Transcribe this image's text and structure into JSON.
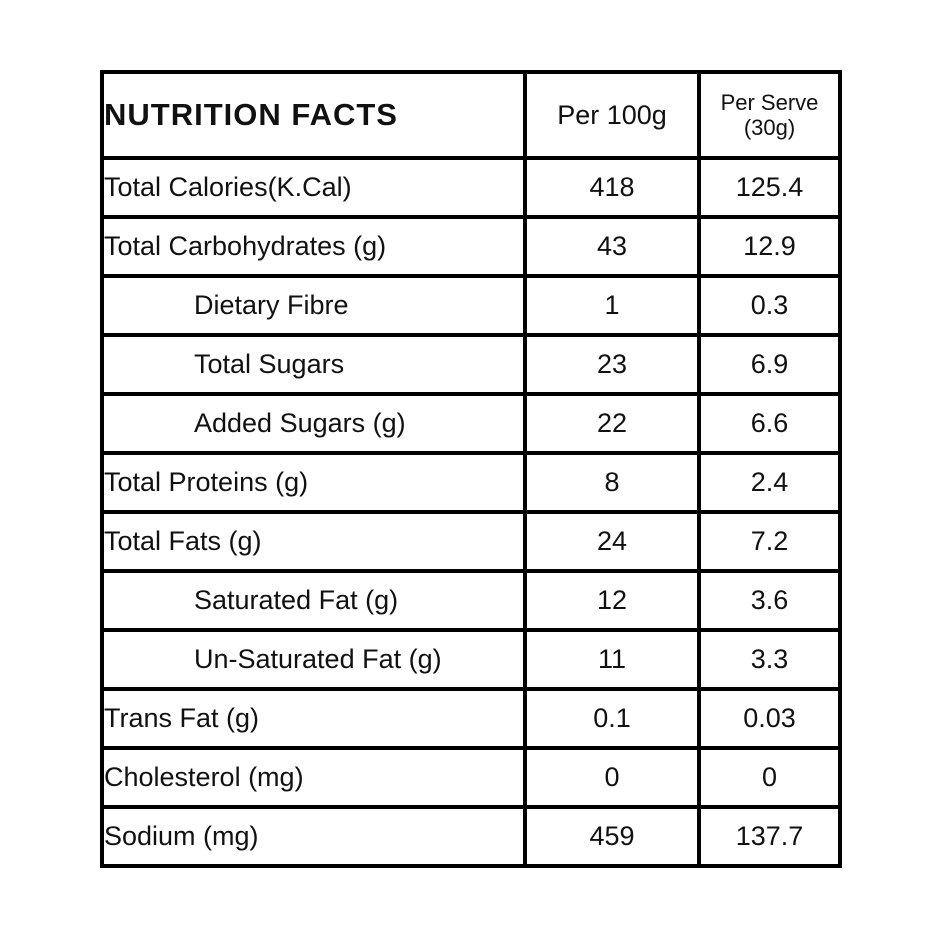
{
  "colors": {
    "border": "#000000",
    "background": "#ffffff",
    "text": "#111111"
  },
  "table": {
    "title": "NUTRITION FACTS",
    "columns": {
      "per_100g": "Per 100g",
      "per_serve_line1": "Per Serve",
      "per_serve_line2": "(30g)"
    },
    "rows": [
      {
        "label": "Total Calories(K.Cal)",
        "per_100g": "418",
        "per_serve": "125.4",
        "indent": false
      },
      {
        "label": "Total Carbohydrates (g)",
        "per_100g": "43",
        "per_serve": "12.9",
        "indent": false
      },
      {
        "label": "Dietary Fibre",
        "per_100g": "1",
        "per_serve": "0.3",
        "indent": true
      },
      {
        "label": "Total Sugars",
        "per_100g": "23",
        "per_serve": "6.9",
        "indent": true
      },
      {
        "label": "Added Sugars (g)",
        "per_100g": "22",
        "per_serve": "6.6",
        "indent": true
      },
      {
        "label": "Total Proteins (g)",
        "per_100g": "8",
        "per_serve": "2.4",
        "indent": false
      },
      {
        "label": "Total Fats (g)",
        "per_100g": "24",
        "per_serve": "7.2",
        "indent": false
      },
      {
        "label": "Saturated Fat (g)",
        "per_100g": "12",
        "per_serve": "3.6",
        "indent": true
      },
      {
        "label": "Un-Saturated Fat (g)",
        "per_100g": "11",
        "per_serve": "3.3",
        "indent": true
      },
      {
        "label": "Trans Fat (g)",
        "per_100g": "0.1",
        "per_serve": "0.03",
        "indent": false
      },
      {
        "label": "Cholesterol (mg)",
        "per_100g": "0",
        "per_serve": "0",
        "indent": false
      },
      {
        "label": "Sodium (mg)",
        "per_100g": "459",
        "per_serve": "137.7",
        "indent": false
      }
    ]
  }
}
